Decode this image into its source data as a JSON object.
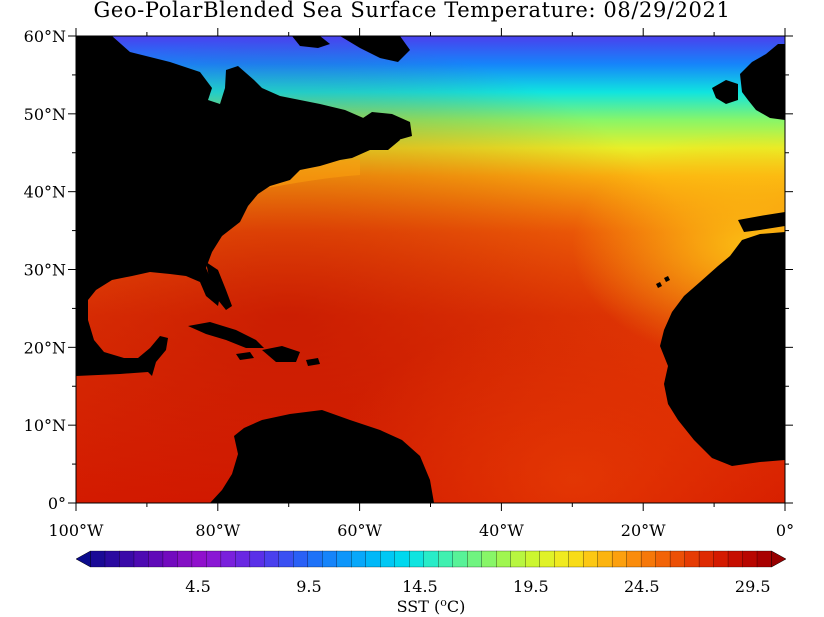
{
  "title": "Geo-PolarBlended Sea Surface Temperature: 08/29/2021",
  "map": {
    "region": "North Atlantic",
    "lon_range": [
      -100,
      0
    ],
    "lat_range": [
      0,
      60
    ],
    "land_color": "#000000",
    "y_ticks": [
      "0°",
      "10°N",
      "20°N",
      "30°N",
      "40°N",
      "50°N",
      "60°N"
    ],
    "x_ticks": [
      "100°W",
      "80°W",
      "60°W",
      "40°W",
      "20°W",
      "0°"
    ]
  },
  "colorbar": {
    "label": "SST (°C)",
    "label_prefix": "SST (",
    "label_unit_sup": "o",
    "label_unit": "C)",
    "tick_labels": [
      "4.5",
      "9.5",
      "14.5",
      "19.5",
      "24.5",
      "29.5"
    ],
    "min": -1,
    "max": 31,
    "colors": [
      "#0b0b8c",
      "#1a0a96",
      "#2a0aa0",
      "#3a0aa8",
      "#4d0ab2",
      "#600ab8",
      "#720abe",
      "#8410c4",
      "#9010cc",
      "#8a18d4",
      "#7a20dc",
      "#6a28e2",
      "#5a30e8",
      "#4a40ee",
      "#3a50f2",
      "#2a60f6",
      "#1e72f8",
      "#1684fa",
      "#0e96fa",
      "#08a8fa",
      "#00b8f8",
      "#00c8f4",
      "#00d8ee",
      "#10e4e0",
      "#28ecc8",
      "#40f0b0",
      "#58f298",
      "#70f480",
      "#88f668",
      "#a0f650",
      "#b8f640",
      "#ccf630",
      "#e0f228",
      "#f0ea20",
      "#f8dc18",
      "#fcc814",
      "#fcb410",
      "#fca00e",
      "#fa8c0c",
      "#f6780a",
      "#f26408",
      "#ec5006",
      "#e63c04",
      "#de2a02",
      "#d41a00",
      "#c60e00",
      "#b80600",
      "#a80000",
      "#960000"
    ]
  }
}
